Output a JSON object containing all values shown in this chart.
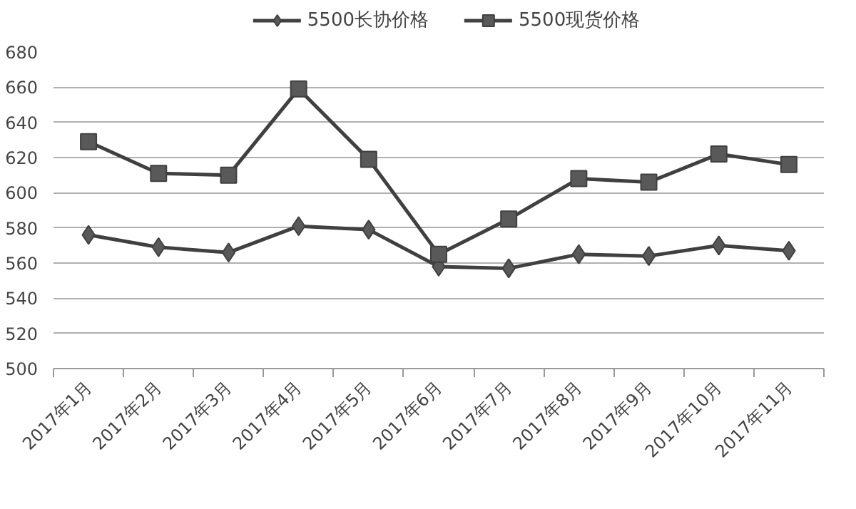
{
  "chart_data": {
    "type": "line",
    "categories": [
      "2017年1月",
      "2017年2月",
      "2017年3月",
      "2017年4月",
      "2017年5月",
      "2017年6月",
      "2017年7月",
      "2017年8月",
      "2017年9月",
      "2017年10月",
      "2017年11月"
    ],
    "series": [
      {
        "name": "5500长协价格",
        "color": "#595959",
        "marker": "diamond",
        "values": [
          576,
          569,
          566,
          581,
          579,
          558,
          557,
          565,
          564,
          570,
          567
        ]
      },
      {
        "name": "5500现货价格",
        "color": "#595959",
        "marker": "square",
        "values": [
          629,
          611,
          610,
          659,
          619,
          565,
          585,
          608,
          606,
          622,
          616
        ]
      }
    ],
    "ylim": [
      500,
      680
    ],
    "yticks": [
      500,
      520,
      540,
      560,
      580,
      600,
      620,
      640,
      660,
      680
    ],
    "grid": "y",
    "legend": "top",
    "line_style": "solid"
  }
}
